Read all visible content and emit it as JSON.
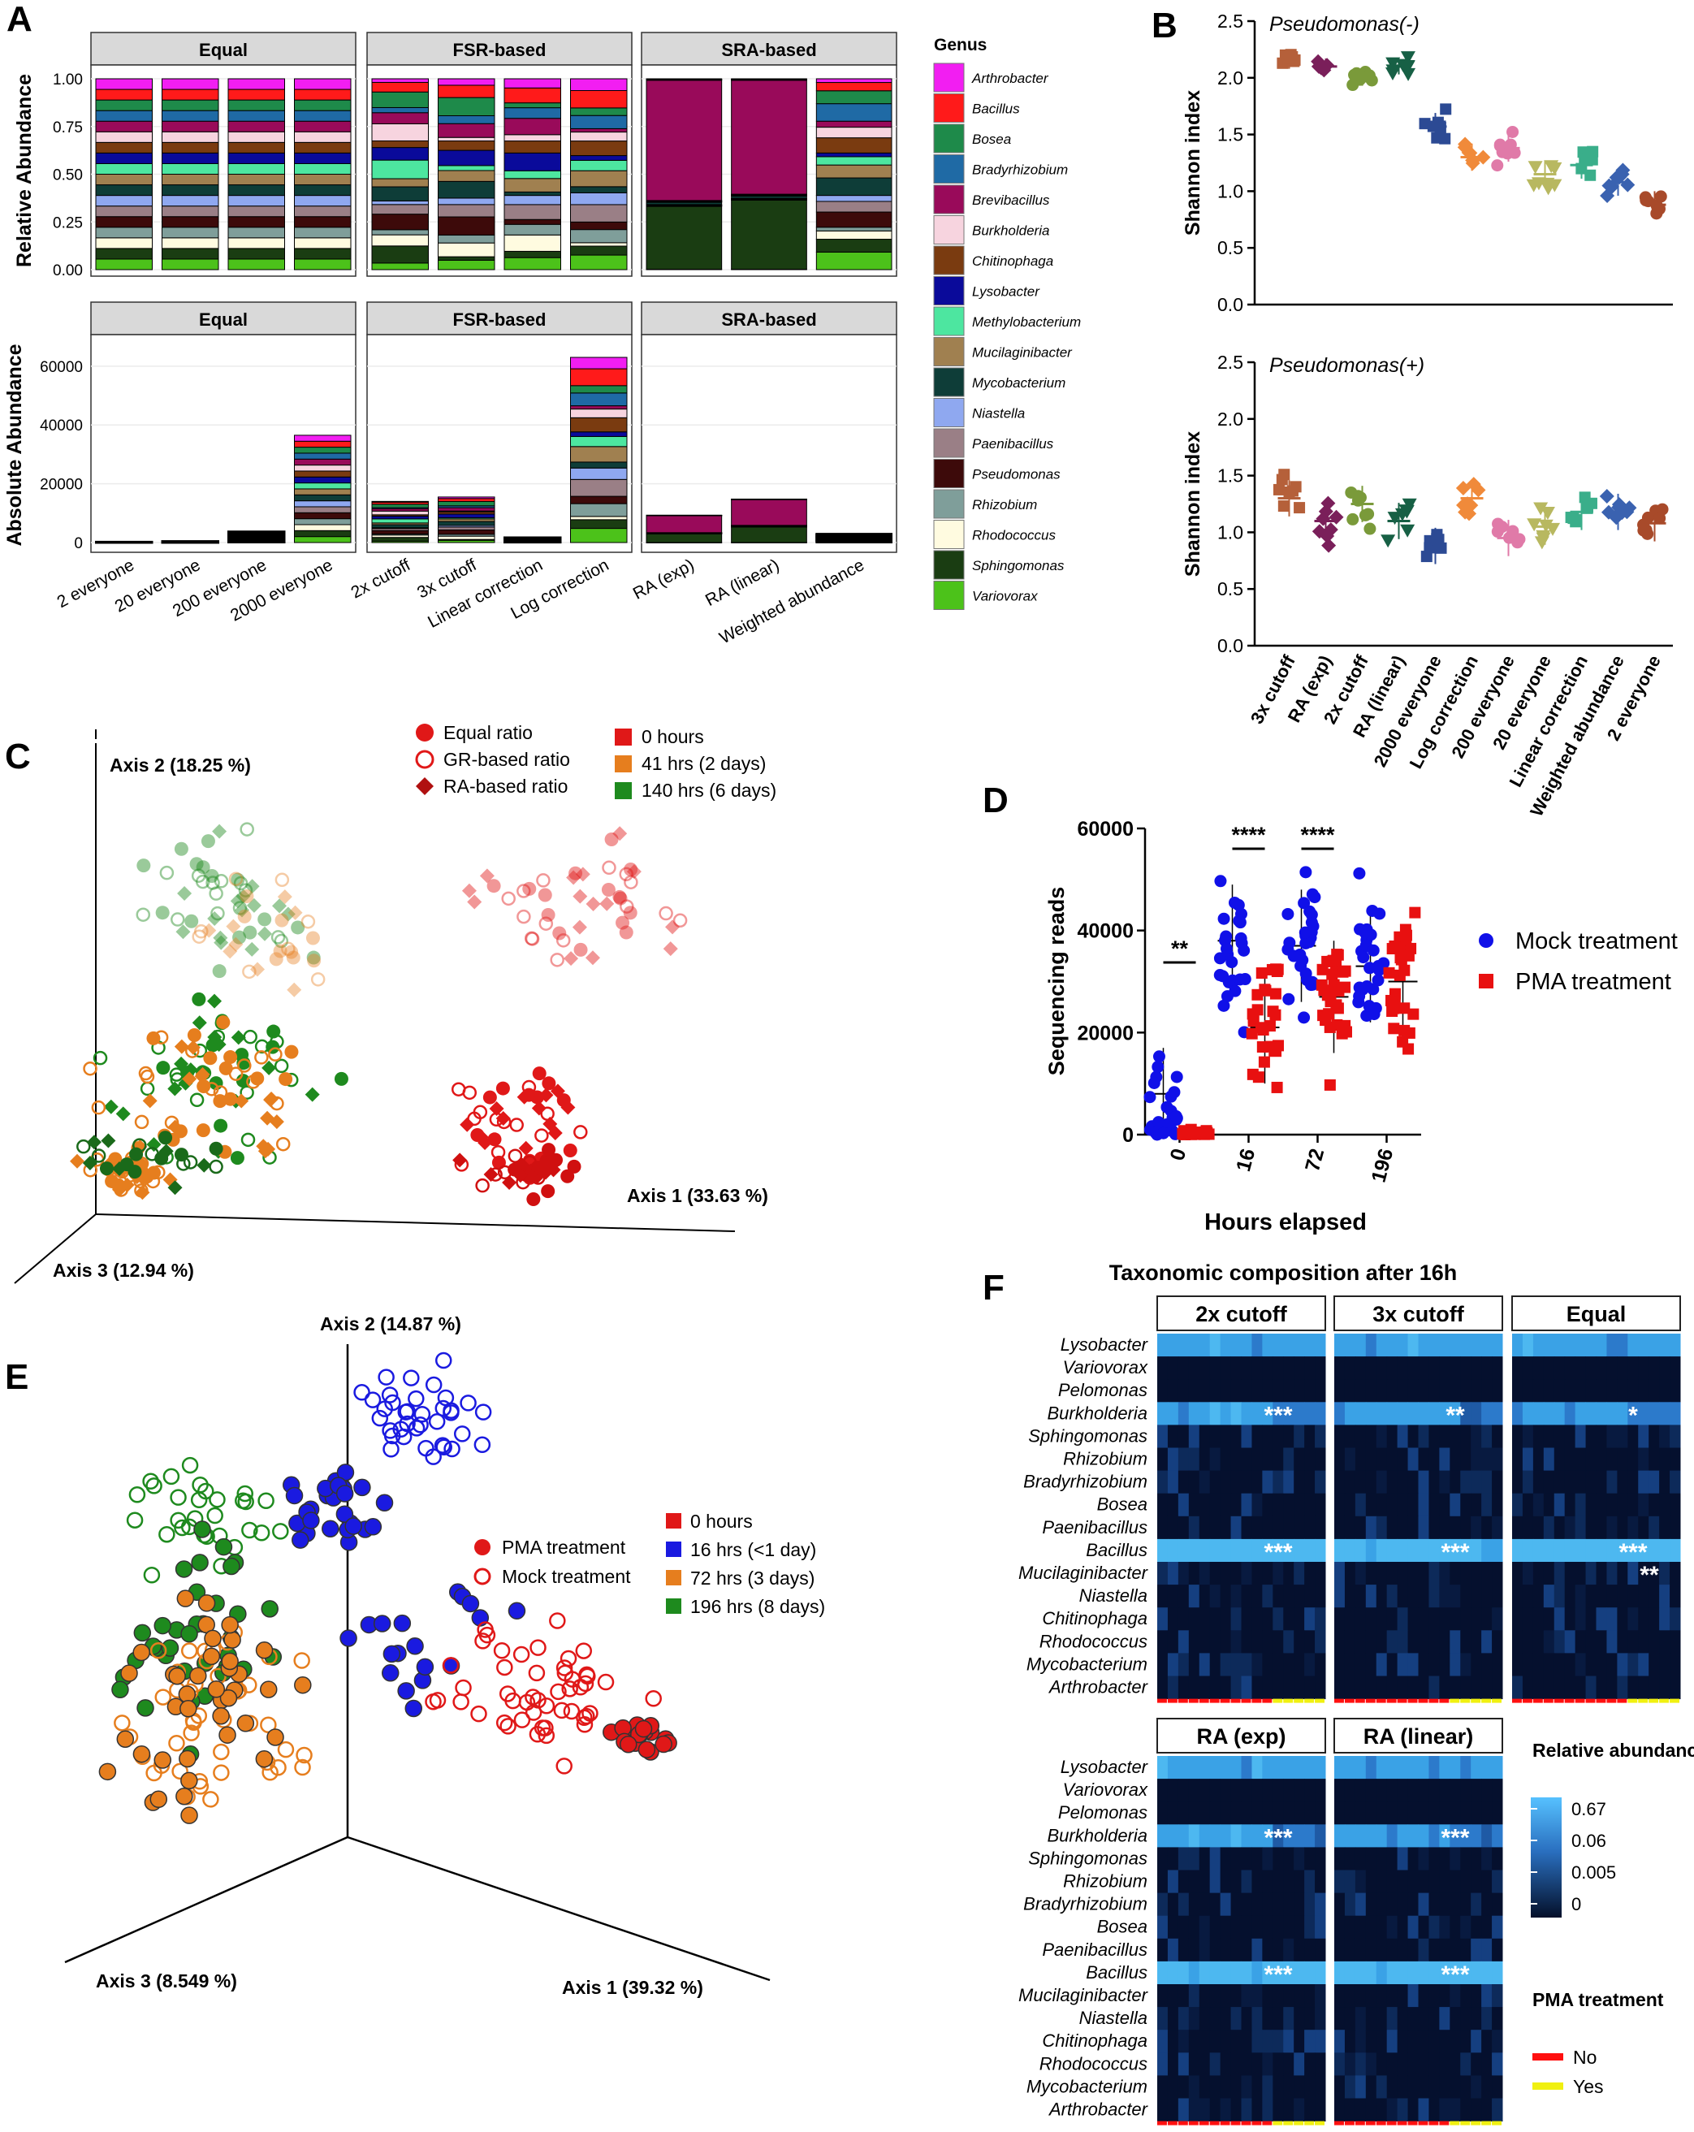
{
  "figure": {
    "panel_letters": [
      "A",
      "B",
      "C",
      "D",
      "E",
      "F"
    ]
  },
  "chart_data": [
    {
      "panel": "A",
      "type": "bar",
      "subtype": "stacked",
      "facets_top": [
        "Equal",
        "FSR-based",
        "SRA-based"
      ],
      "facets_bottom": [
        "Equal",
        "FSR-based",
        "SRA-based"
      ],
      "ylabel_top": "Relative Abundance",
      "ylabel_bottom": "Absolute Abundance",
      "yticks_top": [
        "0.00",
        "0.25",
        "0.50",
        "0.75",
        "1.00"
      ],
      "yticks_bottom": [
        "0",
        "20000",
        "40000",
        "60000"
      ],
      "categories": [
        [
          "2 everyone",
          "20 everyone",
          "200 everyone",
          "2000 everyone"
        ],
        [
          "2x cutoff",
          "3x cutoff",
          "Linear correction",
          "Log correction"
        ],
        [
          "RA (exp)",
          "RA (linear)",
          "Weighted abundance"
        ]
      ],
      "absolute_totals": [
        [
          300,
          500,
          3800,
          36500
        ],
        [
          14000,
          15500,
          1800,
          63000
        ],
        [
          9300,
          14800,
          3000
        ]
      ],
      "legend_title": "Genus",
      "genera": [
        "Arthrobacter",
        "Bacillus",
        "Bosea",
        "Bradyrhizobium",
        "Brevibacillus",
        "Burkholderia",
        "Chitinophaga",
        "Lysobacter",
        "Methylobacterium",
        "Mucilaginibacter",
        "Mycobacterium",
        "Niastella",
        "Paenibacillus",
        "Pseudomonas",
        "Rhizobium",
        "Rhodococcus",
        "Sphingomonas",
        "Variovorax"
      ],
      "genus_colors": [
        "#f21ef2",
        "#ff1a1a",
        "#1e8a4a",
        "#1f6aa5",
        "#990a5a",
        "#f7d4df",
        "#7a3b10",
        "#0a0a9a",
        "#4de6a0",
        "#a08050",
        "#0e3d38",
        "#8fa8f0",
        "#9a7f86",
        "#3d0a0a",
        "#7f9e9a",
        "#fffbe0",
        "#1a3d12",
        "#4cc21a"
      ],
      "ylim_top": [
        0,
        1
      ],
      "ylim_bottom": [
        0,
        63000
      ]
    },
    {
      "panel": "B",
      "type": "scatter",
      "subpanels": [
        "Pseudomonas(-)",
        "Pseudomonas(+)"
      ],
      "ylabel": "Shannon index",
      "yticks": [
        "0.0",
        "0.5",
        "1.0",
        "1.5",
        "2.0",
        "2.5"
      ],
      "ylim": [
        0,
        2.5
      ],
      "categories": [
        "3x cutoff",
        "RA (exp)",
        "2x cutoff",
        "RA (linear)",
        "2000 everyone",
        "Log correction",
        "200 everyone",
        "20 everyone",
        "Linear correction",
        "Weighted abundance",
        "2 everyone"
      ],
      "colors": [
        "#b5603a",
        "#7a1f5a",
        "#7a9a3a",
        "#176045",
        "#2c4a94",
        "#f08a3a",
        "#e07aa8",
        "#b8b860",
        "#3aae8a",
        "#3a62b0",
        "#a84a2a"
      ],
      "means_minus": [
        2.15,
        2.1,
        2.0,
        2.1,
        1.57,
        1.3,
        1.38,
        1.15,
        1.23,
        1.08,
        0.88
      ],
      "means_plus": [
        1.3,
        1.1,
        1.25,
        1.1,
        0.88,
        1.3,
        0.95,
        1.05,
        1.18,
        1.18,
        1.08
      ]
    },
    {
      "panel": "C",
      "type": "scatter",
      "axes": [
        "Axis 1 (33.63 %)",
        "Axis 2 (18.25 %)",
        "Axis 3 (12.94 %)"
      ],
      "legend_shape": [
        "Equal ratio",
        "GR-based ratio",
        "RA-based ratio"
      ],
      "legend_time": [
        "0 hours",
        "41 hrs (2 days)",
        "140 hrs (6 days)"
      ],
      "time_colors": [
        "#e01818",
        "#e67e1e",
        "#1e8a1e"
      ]
    },
    {
      "panel": "D",
      "type": "scatter",
      "xlabel": "Hours elapsed",
      "ylabel": "Sequencing reads",
      "categories": [
        "0",
        "16",
        "72",
        "196"
      ],
      "yticks": [
        "0",
        "20000",
        "40000",
        "60000"
      ],
      "ylim": [
        0,
        60000
      ],
      "series": [
        {
          "name": "Mock treatment",
          "color": "#1010e8",
          "means": [
            8000,
            38000,
            37000,
            33000
          ]
        },
        {
          "name": "PMA treatment",
          "color": "#e81010",
          "means": [
            500,
            21000,
            27000,
            30000
          ]
        }
      ],
      "significance": [
        "**",
        "****",
        "****",
        ""
      ]
    },
    {
      "panel": "E",
      "type": "scatter",
      "axes": [
        "Axis 1 (39.32 %)",
        "Axis 2 (14.87 %)",
        "Axis 3 (8.549 %)"
      ],
      "legend_shape": [
        "PMA treatment",
        "Mock treatment"
      ],
      "legend_time": [
        "0 hours",
        "16 hrs (<1 day)",
        "72 hrs (3 days)",
        "196 hrs (8 days)"
      ],
      "time_colors": [
        "#e01818",
        "#1a1ae0",
        "#e67e1e",
        "#1e8a1e"
      ]
    },
    {
      "panel": "F",
      "type": "heatmap",
      "title": "Taxonomic composition after 16h",
      "facets_top": [
        "2x cutoff",
        "3x cutoff",
        "Equal"
      ],
      "facets_bottom": [
        "RA (exp)",
        "RA (linear)"
      ],
      "rows": [
        "Lysobacter",
        "Variovorax",
        "Pelomonas",
        "Burkholderia",
        "Sphingomonas",
        "Rhizobium",
        "Bradyrhizobium",
        "Bosea",
        "Paenibacillus",
        "Bacillus",
        "Mucilaginibacter",
        "Niastella",
        "Chitinophaga",
        "Rhodococcus",
        "Mycobacterium",
        "Arthrobacter"
      ],
      "stars_top": [
        [
          "***",
          "***"
        ],
        [
          "**",
          "***"
        ],
        [
          "*",
          "***",
          "**"
        ]
      ],
      "stars_bottom": [
        [
          "***",
          "***"
        ],
        [
          "***",
          "***"
        ]
      ],
      "colorbar_title": "Relative abundance",
      "colorbar_ticks": [
        "0.67",
        "0.06",
        "0.005",
        "0"
      ],
      "pma_legend_title": "PMA treatment",
      "pma_legend": [
        "No",
        "Yes"
      ],
      "pma_colors": [
        "#ff1010",
        "#f0f010"
      ]
    }
  ]
}
